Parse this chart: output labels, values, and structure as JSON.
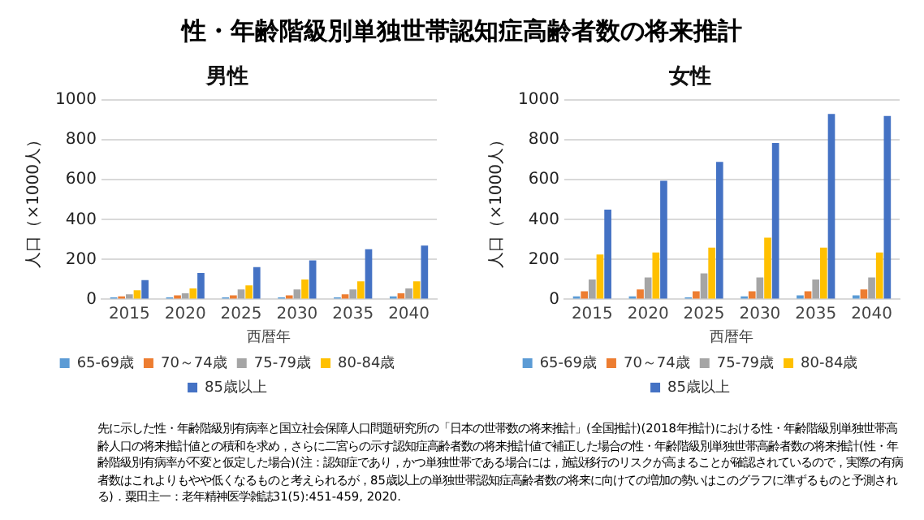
{
  "chart_data": [
    {
      "type": "other",
      "title": "性・年齢階級別単独世帯認知症高齢者数の将来推計",
      "annotations": [
        "先に示した性・年齢階級別有病率と国立社会保障人口問題研究所の「日本の世帯数の将来推計」(全国推計)(2018年推計)における性・年齢階級別単独世帯高齢人口の将来推計値との積和を求め，さらに二宮らの示す認知症高齢者数の将来推計値で補正した場合の性・年齢階級別単独世帯高齢者数の将来推計(性・年齢階級別有病率が不変と仮定した場合)(注：認知症であり，かつ単独世帯である場合には，施設移行のリスクが高まることが確認されているので，実際の有病者数はこれよりもやや低くなるものと考えられるが，85歳以上の単独世帯認知症高齢者数の将来に向けての増加の勢いはこのグラフに準ずるものと予測される)．粟田主一：老年精神医学雑誌31(5):451-459, 2020."
      ]
    },
    {
      "type": "bar",
      "title": "男性",
      "xlabel": "西暦年",
      "ylabel": "人口（×1000人）",
      "categories": [
        "2015",
        "2020",
        "2025",
        "2030",
        "2035",
        "2040"
      ],
      "ylim": [
        0,
        1000
      ],
      "yticks": [
        0,
        200,
        400,
        600,
        800,
        1000
      ],
      "grid": "y",
      "legend": "bottom",
      "series": [
        {
          "name": "65-69歳",
          "color": "#5b9bd5",
          "values": [
            10,
            10,
            10,
            10,
            10,
            15
          ]
        },
        {
          "name": "70～74歳",
          "color": "#ed7d31",
          "values": [
            15,
            20,
            20,
            20,
            25,
            30
          ]
        },
        {
          "name": "75-79歳",
          "color": "#a5a5a5",
          "values": [
            25,
            30,
            50,
            50,
            50,
            55
          ]
        },
        {
          "name": "80-84歳",
          "color": "#ffc000",
          "values": [
            45,
            55,
            70,
            100,
            90,
            90
          ]
        },
        {
          "name": "85歳以上",
          "color": "#4472c4",
          "values": [
            96,
            132,
            162,
            195,
            251,
            270
          ]
        }
      ]
    },
    {
      "type": "bar",
      "title": "女性",
      "xlabel": "西暦年",
      "ylabel": "人口（×1000人）",
      "categories": [
        "2015",
        "2020",
        "2025",
        "2030",
        "2035",
        "2040"
      ],
      "ylim": [
        0,
        1000
      ],
      "yticks": [
        0,
        200,
        400,
        600,
        800,
        1000
      ],
      "grid": "y",
      "legend": "bottom",
      "series": [
        {
          "name": "65-69歳",
          "color": "#5b9bd5",
          "values": [
            15,
            15,
            10,
            15,
            20,
            20
          ]
        },
        {
          "name": "70～74歳",
          "color": "#ed7d31",
          "values": [
            40,
            50,
            40,
            40,
            40,
            50
          ]
        },
        {
          "name": "75-79歳",
          "color": "#a5a5a5",
          "values": [
            100,
            110,
            130,
            110,
            100,
            110
          ]
        },
        {
          "name": "80-84歳",
          "color": "#ffc000",
          "values": [
            225,
            235,
            260,
            310,
            260,
            235
          ]
        },
        {
          "name": "85歳以上",
          "color": "#4472c4",
          "values": [
            450,
            595,
            690,
            785,
            930,
            920
          ]
        }
      ]
    }
  ]
}
